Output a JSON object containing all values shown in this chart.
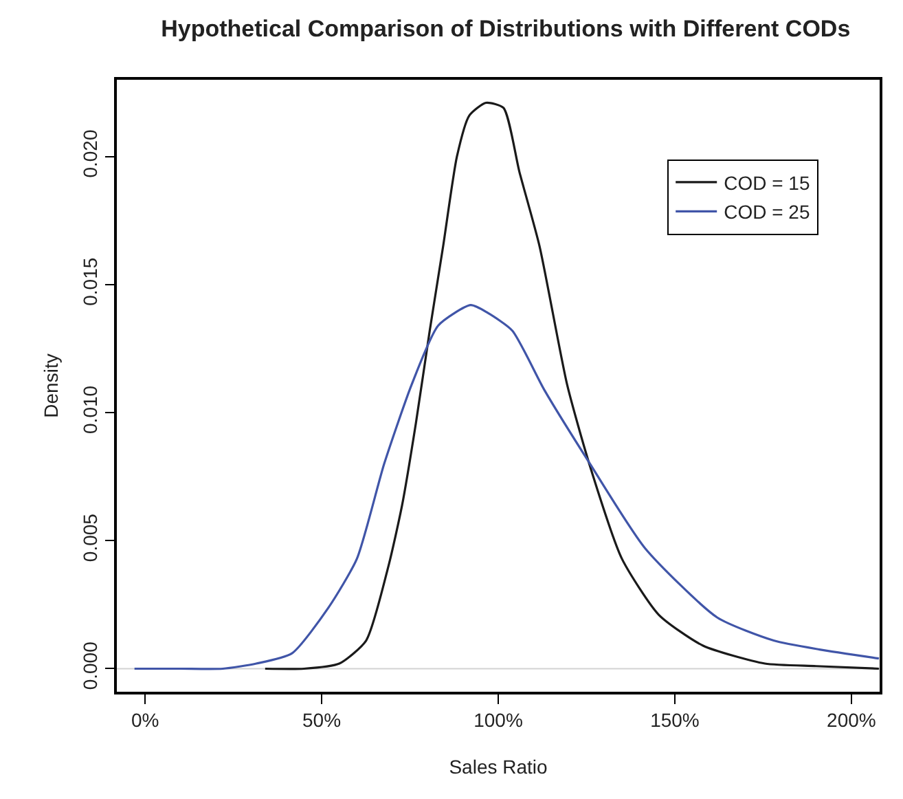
{
  "chart_data": {
    "type": "line",
    "title": "Hypothetical Comparison of Distributions with Different CODs",
    "xlabel": "Sales Ratio",
    "ylabel": "Density",
    "xlim": [
      -8,
      208
    ],
    "xticks": [
      {
        "value": 0,
        "label": "0%"
      },
      {
        "value": 50,
        "label": "50%"
      },
      {
        "value": 100,
        "label": "100%"
      },
      {
        "value": 150,
        "label": "150%"
      },
      {
        "value": 200,
        "label": "200%"
      }
    ],
    "ylim": [
      -0.0009,
      0.023
    ],
    "yticks": [
      {
        "value": 0,
        "label": "0.000"
      },
      {
        "value": 0.005,
        "label": "0.005"
      },
      {
        "value": 0.01,
        "label": "0.010"
      },
      {
        "value": 0.015,
        "label": "0.015"
      },
      {
        "value": 0.02,
        "label": "0.020"
      }
    ],
    "grid": false,
    "legend": "top right",
    "marker": "none",
    "line_style": "solid",
    "ref_lines": [
      {
        "axis": "y",
        "value": 0,
        "color": "#d3d3d3"
      }
    ],
    "series": [
      {
        "name": "COD = 15",
        "color": "#1a1a1a",
        "x": [
          34,
          45,
          55,
          62.6,
          68.9,
          72.8,
          76.7,
          80.6,
          84.4,
          88.3,
          91.8,
          96.5,
          101.5,
          106,
          111.7,
          119.5,
          126,
          135,
          145.5,
          158,
          175.5,
          190,
          207.8
        ],
        "values": [
          0,
          0,
          0.0002,
          0.0011,
          0.004,
          0.0064,
          0.0096,
          0.0132,
          0.0165,
          0.02,
          0.0216,
          0.0221,
          0.0219,
          0.0194,
          0.0165,
          0.0111,
          0.0079,
          0.0043,
          0.0021,
          0.0009,
          0.0002,
          0.0001,
          0
        ]
      },
      {
        "name": "COD = 25",
        "color": "#4055a8",
        "x": [
          -3,
          10,
          22,
          31.5,
          41.6,
          52,
          60,
          67.7,
          75.5,
          83,
          92.2,
          97,
          104,
          113,
          126,
          141.6,
          162,
          178,
          191,
          207.8
        ],
        "values": [
          0,
          0,
          0,
          0.0002,
          0.0006,
          0.0024,
          0.0043,
          0.008,
          0.0111,
          0.0134,
          0.0142,
          0.0139,
          0.0132,
          0.0109,
          0.008,
          0.0047,
          0.002,
          0.0011,
          0.00075,
          0.0004
        ]
      }
    ]
  }
}
